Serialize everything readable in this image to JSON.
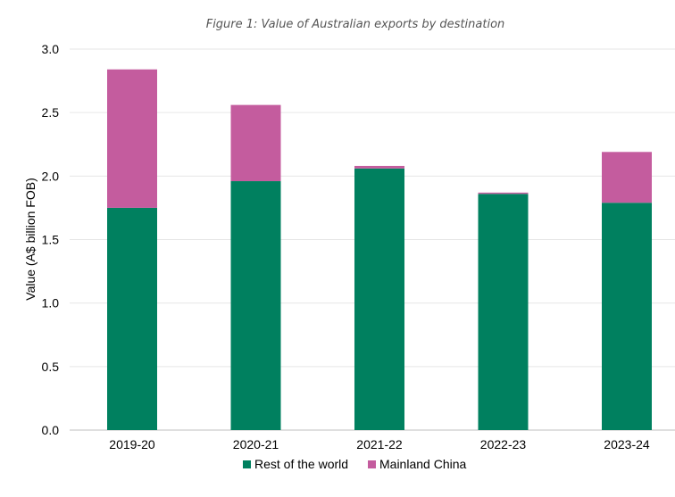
{
  "chart_data": {
    "type": "bar",
    "stacked": true,
    "title": "Figure 1: Value of Australian exports by destination",
    "xlabel": "",
    "ylabel": "Value (A$ billion FOB)",
    "ylim": [
      0,
      3.0
    ],
    "yticks": [
      "0.0",
      "0.5",
      "1.0",
      "1.5",
      "2.0",
      "2.5",
      "3.0"
    ],
    "categories": [
      "2019-20",
      "2020-21",
      "2021-22",
      "2022-23",
      "2023-24"
    ],
    "series": [
      {
        "name": "Rest of the world",
        "color": "#00805f",
        "values": [
          1.75,
          1.96,
          2.06,
          1.86,
          1.79
        ]
      },
      {
        "name": "Mainland China",
        "color": "#c45c9e",
        "values": [
          1.09,
          0.6,
          0.02,
          0.01,
          0.4
        ]
      }
    ],
    "grid": true,
    "legend_position": "bottom"
  }
}
